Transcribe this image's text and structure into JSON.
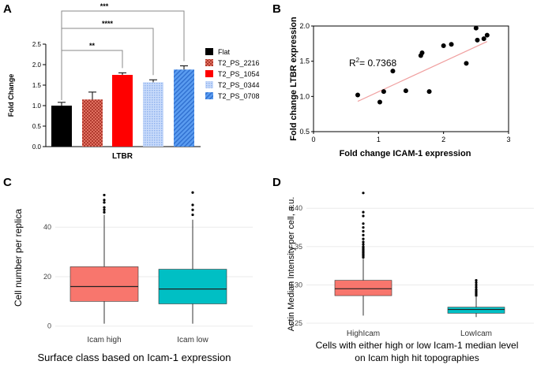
{
  "chart_data": [
    {
      "panel": "A",
      "type": "bar",
      "ylabel": "Fold Change",
      "xlabel": "LTBR",
      "ylim": [
        0.0,
        2.5
      ],
      "yticks": [
        "0.0",
        "0.5",
        "1.0",
        "1.5",
        "2.0",
        "2.5"
      ],
      "series": [
        {
          "name": "Flat",
          "value": 1.0,
          "error": 0.08,
          "color": "#000000",
          "pattern": "solid"
        },
        {
          "name": "T2_PS_2216",
          "value": 1.15,
          "error": 0.18,
          "color": "#c0392b",
          "pattern": "checker"
        },
        {
          "name": "T2_PS_1054",
          "value": 1.75,
          "error": 0.05,
          "color": "#ff0000",
          "pattern": "solid"
        },
        {
          "name": "T2_PS_0344",
          "value": 1.57,
          "error": 0.06,
          "color": "#a9c4f5",
          "pattern": "dots"
        },
        {
          "name": "T2_PS_0708",
          "value": 1.88,
          "error": 0.09,
          "color": "#4f95ef",
          "pattern": "hatch"
        }
      ],
      "significance": [
        {
          "from": "Flat",
          "to": "T2_PS_1054",
          "stars": "**"
        },
        {
          "from": "Flat",
          "to": "T2_PS_0344",
          "stars": "****"
        },
        {
          "from": "Flat",
          "to": "T2_PS_0708",
          "stars": "***"
        }
      ]
    },
    {
      "panel": "B",
      "type": "scatter",
      "xlabel": "Fold change ICAM-1 expression",
      "ylabel": "Fold change LTBR expression",
      "xlim": [
        0,
        3
      ],
      "ylim": [
        0.5,
        2.0
      ],
      "xticks": [
        "0",
        "1",
        "2",
        "3"
      ],
      "yticks": [
        "0.5",
        "1.0",
        "1.5",
        "2.0"
      ],
      "r2_prefix": "R",
      "r2_sup": "2",
      "r2_value": "= 0.7368",
      "points": [
        [
          0.68,
          1.02
        ],
        [
          1.02,
          0.92
        ],
        [
          1.08,
          1.07
        ],
        [
          1.22,
          1.36
        ],
        [
          1.42,
          1.08
        ],
        [
          1.65,
          1.58
        ],
        [
          1.67,
          1.62
        ],
        [
          1.78,
          1.07
        ],
        [
          2.0,
          1.72
        ],
        [
          2.12,
          1.74
        ],
        [
          2.35,
          1.47
        ],
        [
          2.5,
          1.97
        ],
        [
          2.52,
          1.8
        ],
        [
          2.62,
          1.82
        ],
        [
          2.67,
          1.87
        ]
      ],
      "fit": {
        "x": [
          0.68,
          2.67
        ],
        "y": [
          0.93,
          1.78
        ]
      }
    },
    {
      "panel": "C",
      "type": "box",
      "ylabel": "Cell number per replica",
      "xlabel": "Surface class based on Icam-1 expression",
      "ylim": [
        -2,
        56
      ],
      "yticks": [
        "0",
        "20",
        "40"
      ],
      "categories": [
        "Icam high",
        "Icam low"
      ],
      "boxes": [
        {
          "name": "Icam high",
          "min": 1,
          "q1": 10,
          "median": 16,
          "q3": 24,
          "max": 45,
          "outliers": [
            46,
            47,
            48,
            50,
            51,
            53
          ],
          "color": "#f8766d"
        },
        {
          "name": "Icam low",
          "min": 1,
          "q1": 9,
          "median": 15,
          "q3": 23,
          "max": 43,
          "outliers": [
            45,
            47,
            49,
            54
          ],
          "color": "#00bfc4"
        }
      ]
    },
    {
      "panel": "D",
      "type": "box",
      "ylabel": "Actin Median Intensity per cell, a.u.",
      "xlabel_lines": [
        "Cells with either high or low Icam-1 median level",
        "on Icam high hit topographies"
      ],
      "ylim": [
        0.248,
        0.427
      ],
      "yticks": [
        "0.25",
        "0.30",
        "0.35",
        "0.40"
      ],
      "categories": [
        "HighIcam",
        "LowIcam"
      ],
      "boxes": [
        {
          "name": "HighIcam",
          "min": 0.26,
          "q1": 0.286,
          "median": 0.295,
          "q3": 0.306,
          "max": 0.334,
          "outliers": [
            0.336,
            0.338,
            0.34,
            0.342,
            0.344,
            0.346,
            0.348,
            0.35,
            0.353,
            0.356,
            0.36,
            0.365,
            0.37,
            0.375,
            0.38,
            0.39,
            0.395,
            0.42
          ],
          "color": "#f8766d"
        },
        {
          "name": "LowIcam",
          "min": 0.258,
          "q1": 0.263,
          "median": 0.268,
          "q3": 0.271,
          "max": 0.284,
          "outliers": [
            0.286,
            0.288,
            0.29,
            0.292,
            0.294,
            0.297,
            0.3,
            0.303,
            0.306
          ],
          "color": "#00bfc4"
        }
      ]
    }
  ]
}
